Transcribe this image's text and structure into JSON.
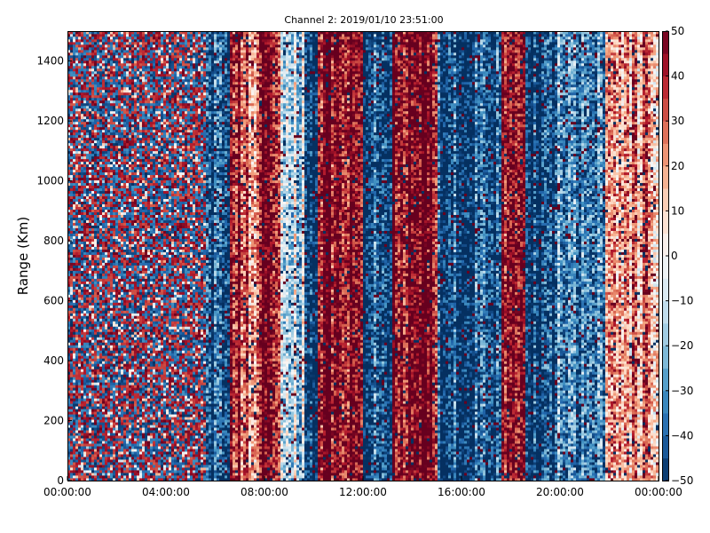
{
  "chart_data": {
    "type": "heatmap",
    "title": "Channel 2: 2019/01/10 23:51:00",
    "xlabel": "",
    "ylabel": "Range (Km)",
    "x_tick_labels": [
      "00:00:00",
      "04:00:00",
      "08:00:00",
      "12:00:00",
      "16:00:00",
      "20:00:00",
      "00:00:00"
    ],
    "x_tick_hours": [
      0,
      4,
      8,
      12,
      16,
      20,
      24
    ],
    "xlim_hours": [
      0,
      24
    ],
    "y_ticks": [
      0,
      200,
      400,
      600,
      800,
      1000,
      1200,
      1400
    ],
    "ylim": [
      0,
      1500
    ],
    "colorbar": {
      "ticks": [
        50,
        40,
        30,
        20,
        10,
        0,
        -10,
        -20,
        -30,
        -40,
        -50
      ],
      "range": [
        -50,
        50
      ],
      "colormap": "RdBu_r",
      "colors": [
        "#053061",
        "#2166ac",
        "#4393c3",
        "#92c5de",
        "#d1e5f0",
        "#f7f7f7",
        "#fddbc7",
        "#f4a582",
        "#d6604d",
        "#b2182b",
        "#67001f"
      ]
    },
    "grid": false,
    "time_bands": [
      {
        "start_h": 0.0,
        "end_h": 5.6,
        "pattern": "noise",
        "mean": 0
      },
      {
        "start_h": 5.6,
        "end_h": 6.6,
        "pattern": "band",
        "mean": -45
      },
      {
        "start_h": 6.6,
        "end_h": 7.0,
        "pattern": "band",
        "mean": 48
      },
      {
        "start_h": 7.0,
        "end_h": 7.9,
        "pattern": "band",
        "mean": 28
      },
      {
        "start_h": 7.9,
        "end_h": 8.6,
        "pattern": "band",
        "mean": 48
      },
      {
        "start_h": 8.6,
        "end_h": 9.6,
        "pattern": "band",
        "mean": -12
      },
      {
        "start_h": 9.6,
        "end_h": 10.2,
        "pattern": "band",
        "mean": -45
      },
      {
        "start_h": 10.2,
        "end_h": 12.0,
        "pattern": "band",
        "mean": 48
      },
      {
        "start_h": 12.0,
        "end_h": 13.2,
        "pattern": "band",
        "mean": -45
      },
      {
        "start_h": 13.2,
        "end_h": 15.0,
        "pattern": "band",
        "mean": 48
      },
      {
        "start_h": 15.0,
        "end_h": 17.6,
        "pattern": "band",
        "mean": -45
      },
      {
        "start_h": 17.6,
        "end_h": 18.6,
        "pattern": "band",
        "mean": 48
      },
      {
        "start_h": 18.6,
        "end_h": 19.8,
        "pattern": "band",
        "mean": -48
      },
      {
        "start_h": 19.8,
        "end_h": 21.8,
        "pattern": "band",
        "mean": -28
      },
      {
        "start_h": 21.8,
        "end_h": 24.0,
        "pattern": "band",
        "mean": 22
      }
    ]
  }
}
